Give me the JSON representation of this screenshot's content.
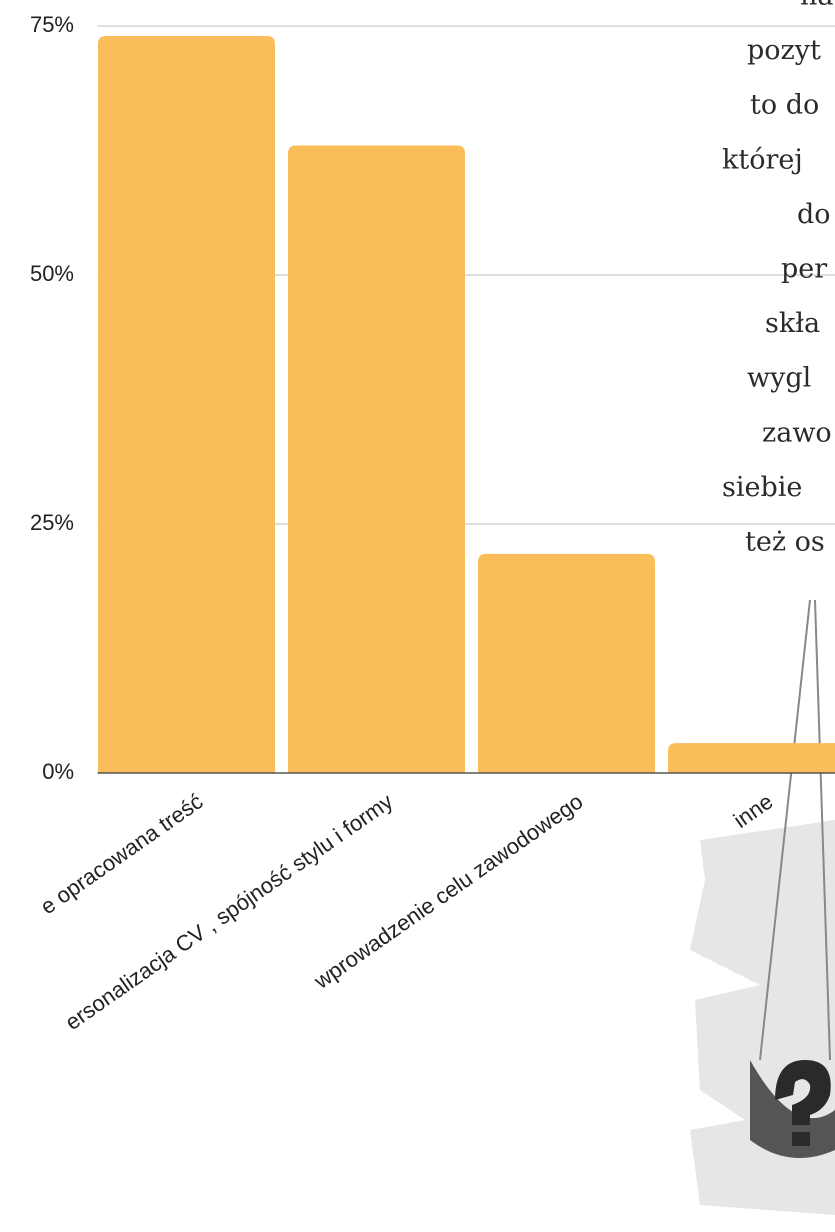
{
  "chart_data": {
    "type": "bar",
    "categories": [
      "e opracowana treść",
      "ersonalizacja CV , spójność stylu i formy",
      "wprowadzenie celu zawodowego",
      "inne"
    ],
    "values": [
      74,
      63,
      22,
      3
    ],
    "color": "#fbbc5a",
    "ylim": [
      0,
      75
    ],
    "yticks": [
      {
        "value": 0,
        "label": "0%"
      },
      {
        "value": 25,
        "label": "25%"
      },
      {
        "value": 50,
        "label": "50%"
      },
      {
        "value": 75,
        "label": "75%"
      }
    ],
    "grid": true
  },
  "side_text": [
    "na",
    "pozyt",
    "to do",
    "której",
    "do",
    "per",
    "skła",
    "wygl",
    "zawo",
    "siebie",
    "też os"
  ]
}
